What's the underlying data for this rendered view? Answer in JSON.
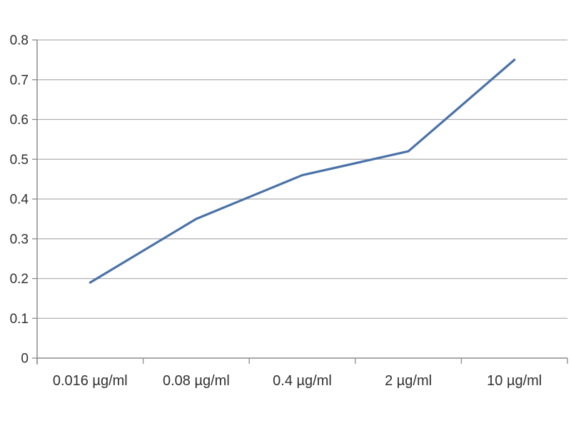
{
  "chart_data": {
    "type": "line",
    "title": "",
    "xlabel": "",
    "ylabel": "",
    "categories": [
      "0.016 µg/ml",
      "0.08 µg/ml",
      "0.4 µg/ml",
      "2 µg/ml",
      "10 µg/ml"
    ],
    "series": [
      {
        "values": [
          0.19,
          0.35,
          0.46,
          0.52,
          0.75
        ]
      }
    ],
    "ylim": [
      0,
      0.8
    ],
    "yticks": [
      0,
      0.1,
      0.2,
      0.3,
      0.4,
      0.5,
      0.6,
      0.7,
      0.8
    ],
    "ytick_labels": [
      "0",
      "0.1",
      "0.2",
      "0.3",
      "0.4",
      "0.5",
      "0.6",
      "0.7",
      "0.8"
    ],
    "grid": "horizontal",
    "legend": "none"
  },
  "colors": {
    "line": "#4A72A8",
    "gridline": "#AFAFAF",
    "axis": "#8C8C8C",
    "text": "#303030",
    "background": "#FFFFFF"
  }
}
